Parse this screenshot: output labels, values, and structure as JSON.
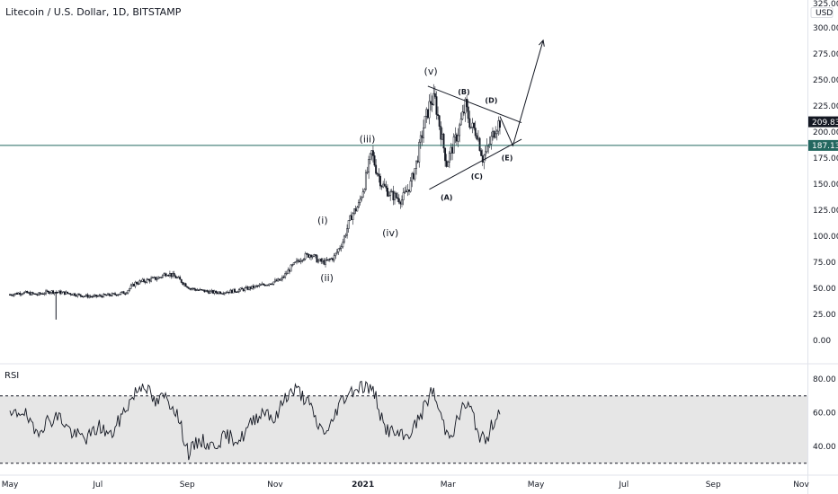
{
  "header": {
    "symbol_title": "Litecoin / U.S. Dollar, 1D, BITSTAMP",
    "currency_top": "325.00",
    "currency_unit": "USD"
  },
  "rsi_panel": {
    "label": "RSI"
  },
  "chart_data": [
    {
      "type": "candlestick",
      "title": "Litecoin / U.S. Dollar, 1D, BITSTAMP",
      "y_unit": "USD",
      "ylim": [
        0,
        325
      ],
      "y_ticks": [
        0,
        25,
        50,
        75,
        100,
        125,
        150,
        175,
        200,
        225,
        250,
        275,
        300
      ],
      "y_tick_labels": [
        "0.00",
        "25.00",
        "50.00",
        "75.00",
        "100.00",
        "125.00",
        "150.00",
        "175.00",
        "200.00",
        "225.00",
        "250.00",
        "275.00",
        "300.00"
      ],
      "x_range": [
        "2020-05-01",
        "2021-11-01"
      ],
      "x_ticks": [
        {
          "date": "2020-05-01",
          "label": "May",
          "bold": false
        },
        {
          "date": "2020-07-01",
          "label": "Jul",
          "bold": false
        },
        {
          "date": "2020-09-01",
          "label": "Sep",
          "bold": false
        },
        {
          "date": "2020-11-01",
          "label": "Nov",
          "bold": false
        },
        {
          "date": "2021-01-01",
          "label": "2021",
          "bold": true
        },
        {
          "date": "2021-03-01",
          "label": "Mar",
          "bold": false
        },
        {
          "date": "2021-05-01",
          "label": "May",
          "bold": false
        },
        {
          "date": "2021-07-01",
          "label": "Jul",
          "bold": false
        },
        {
          "date": "2021-09-01",
          "label": "Sep",
          "bold": false
        },
        {
          "date": "2021-11-01",
          "label": "Nov",
          "bold": false
        }
      ],
      "close_path": [
        [
          "2020-05-01",
          44
        ],
        [
          "2020-05-10",
          46
        ],
        [
          "2020-05-20",
          44
        ],
        [
          "2020-05-29",
          47
        ],
        [
          "2020-06-05",
          46
        ],
        [
          "2020-06-12",
          45
        ],
        [
          "2020-06-20",
          43
        ],
        [
          "2020-06-28",
          42
        ],
        [
          "2020-07-05",
          43
        ],
        [
          "2020-07-12",
          44
        ],
        [
          "2020-07-20",
          46
        ],
        [
          "2020-07-27",
          55
        ],
        [
          "2020-08-05",
          58
        ],
        [
          "2020-08-12",
          60
        ],
        [
          "2020-08-18",
          65
        ],
        [
          "2020-08-25",
          60
        ],
        [
          "2020-09-03",
          50
        ],
        [
          "2020-09-10",
          48
        ],
        [
          "2020-09-20",
          46
        ],
        [
          "2020-10-01",
          47
        ],
        [
          "2020-10-10",
          49
        ],
        [
          "2020-10-20",
          52
        ],
        [
          "2020-10-28",
          55
        ],
        [
          "2020-11-05",
          58
        ],
        [
          "2020-11-12",
          70
        ],
        [
          "2020-11-20",
          80
        ],
        [
          "2020-11-26",
          83
        ],
        [
          "2020-12-01",
          76
        ],
        [
          "2020-12-06",
          75
        ],
        [
          "2020-12-12",
          80
        ],
        [
          "2020-12-18",
          95
        ],
        [
          "2020-12-24",
          120
        ],
        [
          "2020-12-29",
          130
        ],
        [
          "2021-01-02",
          150
        ],
        [
          "2021-01-07",
          180
        ],
        [
          "2021-01-10",
          165
        ],
        [
          "2021-01-14",
          150
        ],
        [
          "2021-01-20",
          140
        ],
        [
          "2021-01-28",
          135
        ],
        [
          "2021-02-03",
          150
        ],
        [
          "2021-02-07",
          170
        ],
        [
          "2021-02-12",
          205
        ],
        [
          "2021-02-17",
          230
        ],
        [
          "2021-02-20",
          230
        ],
        [
          "2021-02-24",
          200
        ],
        [
          "2021-02-28",
          170
        ],
        [
          "2021-03-04",
          185
        ],
        [
          "2021-03-08",
          200
        ],
        [
          "2021-03-13",
          225
        ],
        [
          "2021-03-17",
          205
        ],
        [
          "2021-03-21",
          200
        ],
        [
          "2021-03-25",
          175
        ],
        [
          "2021-03-29",
          185
        ],
        [
          "2021-04-03",
          205
        ],
        [
          "2021-04-06",
          210
        ]
      ],
      "spike_low": {
        "date": "2020-06-02",
        "value": 20
      },
      "price_lines": [
        {
          "value": 209.83,
          "label": "209.83",
          "color": "#131722",
          "kind": "last_price"
        },
        {
          "value": 187.13,
          "label": "187.13",
          "color": "#22675f",
          "kind": "horizontal_level"
        }
      ],
      "wave_labels": [
        {
          "text": "(i)",
          "date": "2020-12-04",
          "value": 112
        },
        {
          "text": "(ii)",
          "date": "2020-12-07",
          "value": 57
        },
        {
          "text": "(iii)",
          "date": "2021-01-04",
          "value": 190
        },
        {
          "text": "(iv)",
          "date": "2021-01-20",
          "value": 100
        },
        {
          "text": "(v)",
          "date": "2021-02-17",
          "value": 255
        },
        {
          "text": "(A)",
          "date": "2021-02-28",
          "value": 135
        },
        {
          "text": "(B)",
          "date": "2021-03-12",
          "value": 236
        },
        {
          "text": "(C)",
          "date": "2021-03-21",
          "value": 155
        },
        {
          "text": "(D)",
          "date": "2021-03-31",
          "value": 228
        },
        {
          "text": "(E)",
          "date": "2021-04-11",
          "value": 173
        }
      ],
      "triangle_upper": [
        [
          "2021-02-15",
          244
        ],
        [
          "2021-04-21",
          209
        ]
      ],
      "triangle_lower": [
        [
          "2021-02-16",
          145
        ],
        [
          "2021-04-21",
          193
        ]
      ],
      "projection_path": [
        [
          "2021-04-06",
          215
        ],
        [
          "2021-04-15",
          187
        ],
        [
          "2021-05-06",
          288
        ]
      ]
    },
    {
      "type": "line",
      "title": "RSI",
      "ylim": [
        28,
        88
      ],
      "y_ticks": [
        40,
        60,
        80
      ],
      "y_tick_labels": [
        "40.00",
        "60.00",
        "80.00"
      ],
      "band": [
        30,
        70
      ],
      "series": [
        {
          "values": [
            [
              "2020-05-01",
              57
            ],
            [
              "2020-05-10",
              62
            ],
            [
              "2020-05-18",
              48
            ],
            [
              "2020-05-27",
              55
            ],
            [
              "2020-06-04",
              58
            ],
            [
              "2020-06-14",
              47
            ],
            [
              "2020-06-24",
              45
            ],
            [
              "2020-07-02",
              52
            ],
            [
              "2020-07-10",
              46
            ],
            [
              "2020-07-20",
              62
            ],
            [
              "2020-07-27",
              72
            ],
            [
              "2020-08-02",
              78
            ],
            [
              "2020-08-10",
              65
            ],
            [
              "2020-08-16",
              70
            ],
            [
              "2020-08-24",
              62
            ],
            [
              "2020-09-02",
              36
            ],
            [
              "2020-09-10",
              44
            ],
            [
              "2020-09-18",
              40
            ],
            [
              "2020-09-28",
              46
            ],
            [
              "2020-10-08",
              44
            ],
            [
              "2020-10-18",
              57
            ],
            [
              "2020-10-26",
              62
            ],
            [
              "2020-11-01",
              55
            ],
            [
              "2020-11-08",
              70
            ],
            [
              "2020-11-16",
              74
            ],
            [
              "2020-11-24",
              66
            ],
            [
              "2020-12-01",
              52
            ],
            [
              "2020-12-08",
              48
            ],
            [
              "2020-12-15",
              65
            ],
            [
              "2020-12-22",
              72
            ],
            [
              "2020-12-30",
              76
            ],
            [
              "2021-01-05",
              75
            ],
            [
              "2021-01-10",
              70
            ],
            [
              "2021-01-15",
              52
            ],
            [
              "2021-01-22",
              48
            ],
            [
              "2021-01-30",
              45
            ],
            [
              "2021-02-06",
              52
            ],
            [
              "2021-02-12",
              62
            ],
            [
              "2021-02-18",
              74
            ],
            [
              "2021-02-24",
              58
            ],
            [
              "2021-02-28",
              48
            ],
            [
              "2021-03-05",
              50
            ],
            [
              "2021-03-12",
              65
            ],
            [
              "2021-03-17",
              62
            ],
            [
              "2021-03-22",
              48
            ],
            [
              "2021-03-27",
              42
            ],
            [
              "2021-04-01",
              54
            ],
            [
              "2021-04-06",
              62
            ]
          ]
        }
      ]
    }
  ]
}
